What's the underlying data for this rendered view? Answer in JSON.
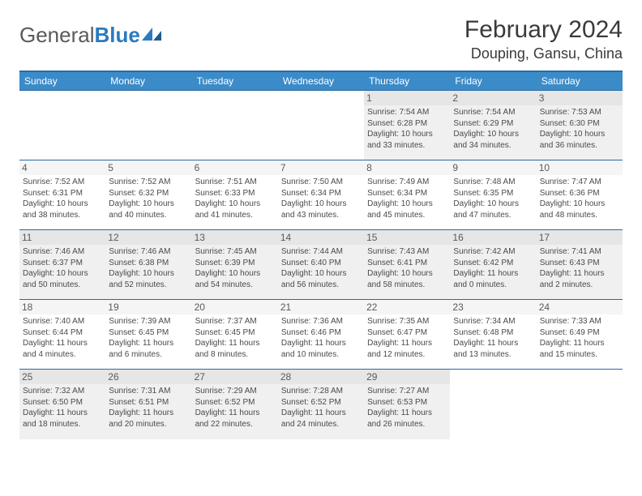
{
  "logo": {
    "text1": "General",
    "text2": "Blue"
  },
  "title": "February 2024",
  "location": "Douping, Gansu, China",
  "colors": {
    "header_bg": "#3b8bc9",
    "border": "#2a6aa3",
    "alt_row": "#f0f0f0",
    "text": "#4a4a4a",
    "logo_gray": "#5a5a5a",
    "logo_blue": "#2a7bbf"
  },
  "dayNames": [
    "Sunday",
    "Monday",
    "Tuesday",
    "Wednesday",
    "Thursday",
    "Friday",
    "Saturday"
  ],
  "weeks": [
    [
      null,
      null,
      null,
      null,
      {
        "n": "1",
        "sr": "7:54 AM",
        "ss": "6:28 PM",
        "dl": "10 hours and 33 minutes."
      },
      {
        "n": "2",
        "sr": "7:54 AM",
        "ss": "6:29 PM",
        "dl": "10 hours and 34 minutes."
      },
      {
        "n": "3",
        "sr": "7:53 AM",
        "ss": "6:30 PM",
        "dl": "10 hours and 36 minutes."
      }
    ],
    [
      {
        "n": "4",
        "sr": "7:52 AM",
        "ss": "6:31 PM",
        "dl": "10 hours and 38 minutes."
      },
      {
        "n": "5",
        "sr": "7:52 AM",
        "ss": "6:32 PM",
        "dl": "10 hours and 40 minutes."
      },
      {
        "n": "6",
        "sr": "7:51 AM",
        "ss": "6:33 PM",
        "dl": "10 hours and 41 minutes."
      },
      {
        "n": "7",
        "sr": "7:50 AM",
        "ss": "6:34 PM",
        "dl": "10 hours and 43 minutes."
      },
      {
        "n": "8",
        "sr": "7:49 AM",
        "ss": "6:34 PM",
        "dl": "10 hours and 45 minutes."
      },
      {
        "n": "9",
        "sr": "7:48 AM",
        "ss": "6:35 PM",
        "dl": "10 hours and 47 minutes."
      },
      {
        "n": "10",
        "sr": "7:47 AM",
        "ss": "6:36 PM",
        "dl": "10 hours and 48 minutes."
      }
    ],
    [
      {
        "n": "11",
        "sr": "7:46 AM",
        "ss": "6:37 PM",
        "dl": "10 hours and 50 minutes."
      },
      {
        "n": "12",
        "sr": "7:46 AM",
        "ss": "6:38 PM",
        "dl": "10 hours and 52 minutes."
      },
      {
        "n": "13",
        "sr": "7:45 AM",
        "ss": "6:39 PM",
        "dl": "10 hours and 54 minutes."
      },
      {
        "n": "14",
        "sr": "7:44 AM",
        "ss": "6:40 PM",
        "dl": "10 hours and 56 minutes."
      },
      {
        "n": "15",
        "sr": "7:43 AM",
        "ss": "6:41 PM",
        "dl": "10 hours and 58 minutes."
      },
      {
        "n": "16",
        "sr": "7:42 AM",
        "ss": "6:42 PM",
        "dl": "11 hours and 0 minutes."
      },
      {
        "n": "17",
        "sr": "7:41 AM",
        "ss": "6:43 PM",
        "dl": "11 hours and 2 minutes."
      }
    ],
    [
      {
        "n": "18",
        "sr": "7:40 AM",
        "ss": "6:44 PM",
        "dl": "11 hours and 4 minutes."
      },
      {
        "n": "19",
        "sr": "7:39 AM",
        "ss": "6:45 PM",
        "dl": "11 hours and 6 minutes."
      },
      {
        "n": "20",
        "sr": "7:37 AM",
        "ss": "6:45 PM",
        "dl": "11 hours and 8 minutes."
      },
      {
        "n": "21",
        "sr": "7:36 AM",
        "ss": "6:46 PM",
        "dl": "11 hours and 10 minutes."
      },
      {
        "n": "22",
        "sr": "7:35 AM",
        "ss": "6:47 PM",
        "dl": "11 hours and 12 minutes."
      },
      {
        "n": "23",
        "sr": "7:34 AM",
        "ss": "6:48 PM",
        "dl": "11 hours and 13 minutes."
      },
      {
        "n": "24",
        "sr": "7:33 AM",
        "ss": "6:49 PM",
        "dl": "11 hours and 15 minutes."
      }
    ],
    [
      {
        "n": "25",
        "sr": "7:32 AM",
        "ss": "6:50 PM",
        "dl": "11 hours and 18 minutes."
      },
      {
        "n": "26",
        "sr": "7:31 AM",
        "ss": "6:51 PM",
        "dl": "11 hours and 20 minutes."
      },
      {
        "n": "27",
        "sr": "7:29 AM",
        "ss": "6:52 PM",
        "dl": "11 hours and 22 minutes."
      },
      {
        "n": "28",
        "sr": "7:28 AM",
        "ss": "6:52 PM",
        "dl": "11 hours and 24 minutes."
      },
      {
        "n": "29",
        "sr": "7:27 AM",
        "ss": "6:53 PM",
        "dl": "11 hours and 26 minutes."
      },
      null,
      null
    ]
  ],
  "labels": {
    "sunrise": "Sunrise: ",
    "sunset": "Sunset: ",
    "daylight": "Daylight: "
  }
}
